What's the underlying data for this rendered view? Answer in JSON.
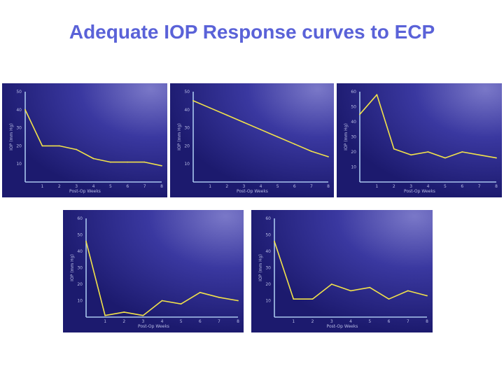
{
  "slide": {
    "title": "Adequate IOP Response curves to ECP"
  },
  "colors": {
    "title": "#5a62d8",
    "panel_bg_dark": "#1c1a6e",
    "panel_bg_light": "#7a78c8",
    "axis": "#a9c6ee",
    "line": "#f2e24a"
  },
  "chart_data": [
    {
      "type": "line",
      "ylabel": "IOP (mm Hg)",
      "xlabel": "Post-Op Weeks",
      "xlim": [
        0,
        8
      ],
      "ylim": [
        0,
        50
      ],
      "xticks": [
        "1",
        "2",
        "3",
        "4",
        "5",
        "6",
        "7",
        "8"
      ],
      "yticks": [
        "10",
        "20",
        "30",
        "40",
        "50"
      ],
      "x": [
        0,
        1,
        2,
        3,
        4,
        5,
        6,
        7,
        8
      ],
      "series": [
        {
          "values": [
            40,
            20,
            20,
            18,
            13,
            11,
            11,
            11,
            9
          ]
        }
      ]
    },
    {
      "type": "line",
      "ylabel": "IOP (mm Hg)",
      "xlabel": "Post-Op Weeks",
      "xlim": [
        0,
        8
      ],
      "ylim": [
        0,
        50
      ],
      "xticks": [
        "1",
        "2",
        "3",
        "4",
        "5",
        "6",
        "7",
        "8"
      ],
      "yticks": [
        "10",
        "20",
        "30",
        "40",
        "50"
      ],
      "x": [
        0,
        1,
        2,
        3,
        4,
        5,
        6,
        7,
        8
      ],
      "series": [
        {
          "values": [
            45,
            41,
            37,
            33,
            29,
            25,
            21,
            17,
            14
          ]
        }
      ]
    },
    {
      "type": "line",
      "ylabel": "IOP (mm Hg)",
      "xlabel": "Post-Op Weeks",
      "xlim": [
        0,
        8
      ],
      "ylim": [
        0,
        60
      ],
      "xticks": [
        "1",
        "2",
        "3",
        "4",
        "5",
        "6",
        "7",
        "8"
      ],
      "yticks": [
        "10",
        "20",
        "30",
        "40",
        "50",
        "60"
      ],
      "x": [
        0,
        1,
        2,
        3,
        4,
        5,
        6,
        7,
        8
      ],
      "series": [
        {
          "values": [
            45,
            58,
            22,
            18,
            20,
            16,
            20,
            18,
            16
          ]
        }
      ]
    },
    {
      "type": "line",
      "ylabel": "IOP (mm Hg)",
      "xlabel": "Post-Op Weeks",
      "xlim": [
        0,
        8
      ],
      "ylim": [
        0,
        60
      ],
      "xticks": [
        "1",
        "2",
        "3",
        "4",
        "5",
        "6",
        "7",
        "8"
      ],
      "yticks": [
        "10",
        "20",
        "30",
        "40",
        "50",
        "60"
      ],
      "x": [
        0,
        1,
        2,
        3,
        4,
        5,
        6,
        7,
        8
      ],
      "series": [
        {
          "values": [
            46,
            1,
            3,
            1,
            10,
            8,
            15,
            12,
            10
          ]
        }
      ]
    },
    {
      "type": "line",
      "ylabel": "IOP (mm Hg)",
      "xlabel": "Post-Op Weeks",
      "xlim": [
        0,
        8
      ],
      "ylim": [
        0,
        60
      ],
      "xticks": [
        "1",
        "2",
        "3",
        "4",
        "5",
        "6",
        "7",
        "8"
      ],
      "yticks": [
        "10",
        "20",
        "30",
        "40",
        "50",
        "60"
      ],
      "x": [
        0,
        1,
        2,
        3,
        4,
        5,
        6,
        7,
        8
      ],
      "series": [
        {
          "values": [
            46,
            11,
            11,
            20,
            16,
            18,
            11,
            16,
            13
          ]
        }
      ]
    }
  ]
}
